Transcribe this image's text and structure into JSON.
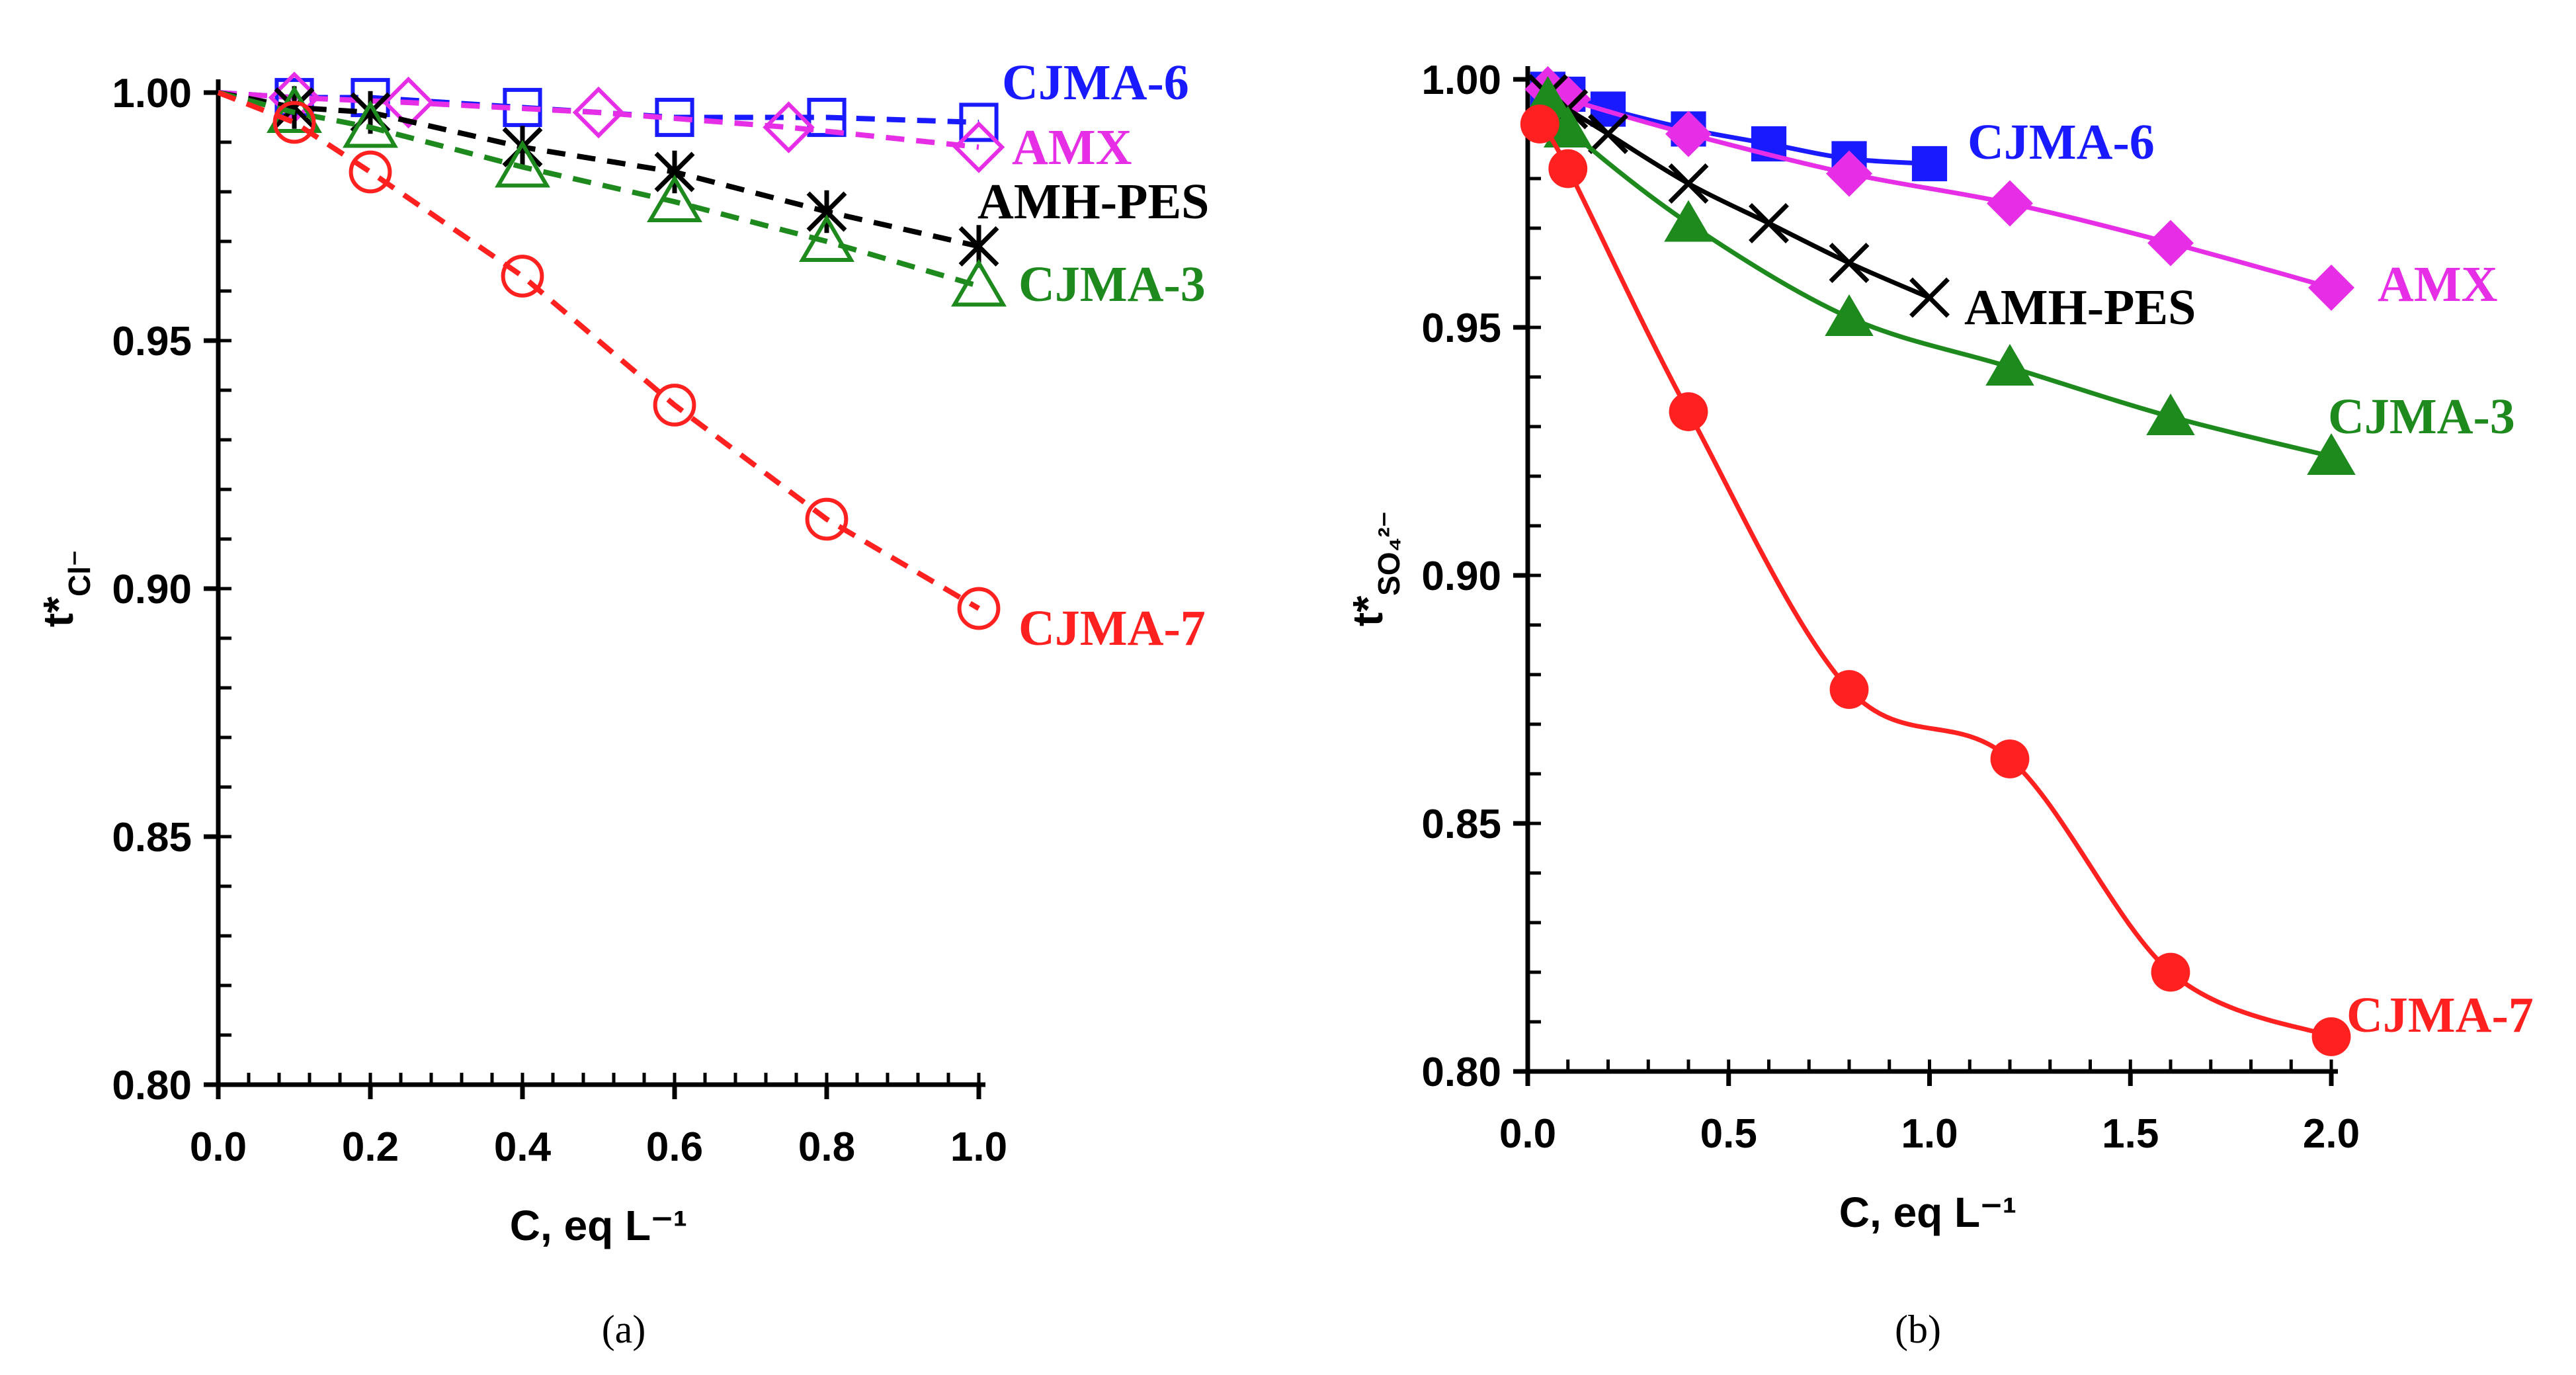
{
  "chart_data": [
    {
      "type": "line",
      "panel": "(a)",
      "xlabel": "C, eq L⁻¹",
      "ylabel_main": "t*",
      "ylabel_sub": "Cl⁻",
      "xlim": [
        0.0,
        1.0
      ],
      "ylim": [
        0.8,
        1.0
      ],
      "xticks": [
        "0.0",
        "0.2",
        "0.4",
        "0.6",
        "0.8",
        "1.0"
      ],
      "yticks": [
        "0.80",
        "0.85",
        "0.90",
        "0.95",
        "1.00"
      ],
      "series": [
        {
          "name": "CJMA-6",
          "color": "#1a1aff",
          "marker": "square-open",
          "line": "dashed",
          "x": [
            0.1,
            0.2,
            0.4,
            0.6,
            0.8,
            1.0
          ],
          "y": [
            0.999,
            0.999,
            0.997,
            0.995,
            0.995,
            0.994
          ]
        },
        {
          "name": "AMX",
          "color": "#e62ee6",
          "marker": "diamond-open",
          "line": "dashed",
          "x": [
            0.1,
            0.25,
            0.5,
            0.75,
            1.0
          ],
          "y": [
            0.999,
            0.998,
            0.996,
            0.993,
            0.989
          ]
        },
        {
          "name": "AMH-PES",
          "color": "#000000",
          "marker": "star",
          "line": "dashed",
          "x": [
            0.1,
            0.2,
            0.4,
            0.6,
            0.8,
            1.0
          ],
          "y": [
            0.997,
            0.996,
            0.989,
            0.984,
            0.976,
            0.969
          ]
        },
        {
          "name": "CJMA-3",
          "color": "#1e8a1e",
          "marker": "triangle-open",
          "line": "dashed",
          "x": [
            0.1,
            0.2,
            0.4,
            0.6,
            0.8,
            1.0
          ],
          "y": [
            0.996,
            0.993,
            0.985,
            0.978,
            0.97,
            0.961
          ]
        },
        {
          "name": "CJMA-7",
          "color": "#ff2020",
          "marker": "circle-open",
          "line": "dashed",
          "x": [
            0.1,
            0.2,
            0.4,
            0.6,
            0.8,
            1.0
          ],
          "y": [
            0.994,
            0.984,
            0.963,
            0.937,
            0.914,
            0.896
          ]
        }
      ]
    },
    {
      "type": "scatter",
      "panel": "(b)",
      "xlabel": "C, eq L⁻¹",
      "ylabel_main": "t*",
      "ylabel_sub": "SO₄²⁻",
      "xlim": [
        0.0,
        2.0
      ],
      "ylim": [
        0.8,
        1.0
      ],
      "xticks": [
        "0.0",
        "0.5",
        "1.0",
        "1.5",
        "2.0"
      ],
      "yticks": [
        "0.80",
        "0.85",
        "0.90",
        "0.95",
        "1.00"
      ],
      "series": [
        {
          "name": "CJMA-6",
          "color": "#1a1aff",
          "marker": "square",
          "fit": "solid",
          "x": [
            0.05,
            0.1,
            0.2,
            0.4,
            0.6,
            0.8,
            1.0
          ],
          "y": [
            0.998,
            0.997,
            0.994,
            0.99,
            0.987,
            0.984,
            0.983
          ]
        },
        {
          "name": "AMX",
          "color": "#e62ee6",
          "marker": "diamond",
          "fit": "solid",
          "x": [
            0.05,
            0.1,
            0.4,
            0.8,
            1.2,
            1.6,
            2.0
          ],
          "y": [
            0.998,
            0.996,
            0.989,
            0.981,
            0.975,
            0.967,
            0.958
          ]
        },
        {
          "name": "AMH-PES",
          "color": "#000000",
          "marker": "cross",
          "fit": "solid",
          "x": [
            0.05,
            0.1,
            0.2,
            0.4,
            0.6,
            0.8,
            1.0
          ],
          "y": [
            0.997,
            0.994,
            0.989,
            0.979,
            0.971,
            0.963,
            0.956
          ]
        },
        {
          "name": "CJMA-3",
          "color": "#1e8a1e",
          "marker": "triangle",
          "fit": "solid",
          "x": [
            0.05,
            0.1,
            0.4,
            0.8,
            1.2,
            1.6,
            2.0
          ],
          "y": [
            0.996,
            0.99,
            0.971,
            0.952,
            0.942,
            0.932,
            0.924
          ]
        },
        {
          "name": "CJMA-7",
          "color": "#ff2020",
          "marker": "circle",
          "fit": "solid",
          "x": [
            0.03,
            0.1,
            0.4,
            0.8,
            1.2,
            1.6,
            2.0
          ],
          "y": [
            0.991,
            0.982,
            0.933,
            0.877,
            0.863,
            0.82,
            0.807
          ]
        }
      ]
    }
  ]
}
